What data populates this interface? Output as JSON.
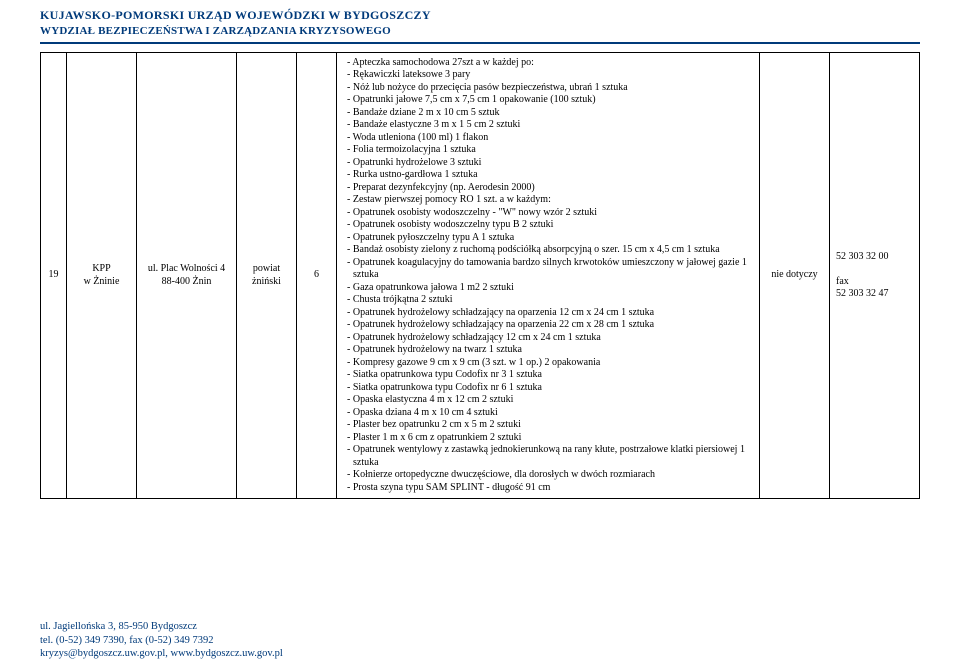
{
  "header": {
    "line1": "KUJAWSKO-POMORSKI URZĄD WOJEWÓDZKI W BYDGOSZCZY",
    "line2": "WYDZIAŁ BEZPIECZEŃSTWA I ZARZĄDZANIA KRYZYSOWEGO"
  },
  "row": {
    "idx": "19",
    "unit_line1": "KPP",
    "unit_line2": "w Żninie",
    "addr_line1": "ul. Plac Wolności 4",
    "addr_line2": "88-400 Żnin",
    "pow_line1": "powiat",
    "pow_line2": "żniński",
    "qty": "6",
    "note": "nie  dotyczy",
    "tel_line1": "52  303 32 00",
    "tel_space": " ",
    "tel_line2": "fax",
    "tel_line3": "52  303 32 47"
  },
  "desc": [
    "Apteczka samochodowa 27szt a w każdej po:",
    "Rękawiczki lateksowe 3 pary",
    "Nóż lub nożyce do przecięcia pasów bezpieczeństwa, ubrań 1 sztuka",
    "Opatrunki jałowe 7,5 cm x 7,5 cm 1 opakowanie (100 sztuk)",
    "Bandaże dziane 2 m x 10 cm 5 sztuk",
    "Bandaże elastyczne 3 m x 1 5 cm 2 sztuki",
    "Woda utleniona (100 ml) 1 flakon",
    "Folia termoizolacyjna 1 sztuka",
    "Opatrunki hydrożelowe 3 sztuki",
    "Rurka ustno-gardłowa 1 sztuka",
    "Preparat dezynfekcyjny (np. Aerodesin 2000)",
    "Zestaw pierwszej pomocy RO 1 szt. a w każdym:",
    "Opatrunek osobisty wodoszczelny - \"W\" nowy wzór 2 sztuki",
    "Opatrunek osobisty wodoszczelny typu B 2 sztuki",
    "Opatrunek pyłoszczelny typu A 1 sztuka",
    "Bandaż osobisty zielony z ruchomą podściółką absorpcyjną o szer. 15 cm x 4,5 cm 1 sztuka",
    "Opatrunek koagulacyjny do tamowania bardzo silnych krwotoków umieszczony w jałowej gazie 1 sztuka",
    "Gaza opatrunkowa jałowa 1 m2 2 sztuki",
    "Chusta trójkątna 2 sztuki",
    "Opatrunek hydrożelowy schładzający na oparzenia 12 cm x 24 cm 1 sztuka",
    "Opatrunek hydrożelowy schładzający na oparzenia 22 cm x 28 cm 1 sztuka",
    "Opatrunek hydrożelowy schładzający 12 cm x 24 cm 1 sztuka",
    "Opatrunek hydrożelowy na twarz 1 sztuka",
    "Kompresy gazowe 9 cm x 9 cm (3 szt. w 1 op.) 2 opakowania",
    "Siatka opatrunkowa typu Codofix nr 3 1 sztuka",
    "Siatka opatrunkowa typu Codofix nr 6 1 sztuka",
    "Opaska elastyczna 4 m x 12 cm 2 sztuki",
    "Opaska dziana 4 m x 10 cm 4 sztuki",
    "Plaster bez opatrunku 2 cm x 5 m 2 sztuki",
    "Plaster 1 m x 6 cm z opatrunkiem 2 sztuki",
    "Opatrunek wentylowy z zastawką jednokierunkową na rany kłute, postrzałowe klatki piersiowej 1 sztuka",
    "Kołnierze ortopedyczne dwuczęściowe, dla dorosłych w dwóch rozmiarach",
    "Prosta szyna typu SAM SPLINT - długość 91 cm"
  ],
  "footer": {
    "line1": "ul. Jagiellońska 3, 85-950 Bydgoszcz",
    "line2": "tel. (0-52) 349 7390, fax (0-52) 349 7392",
    "line3": "kryzys@bydgoszcz.uw.gov.pl, www.bydgoszcz.uw.gov.pl"
  }
}
